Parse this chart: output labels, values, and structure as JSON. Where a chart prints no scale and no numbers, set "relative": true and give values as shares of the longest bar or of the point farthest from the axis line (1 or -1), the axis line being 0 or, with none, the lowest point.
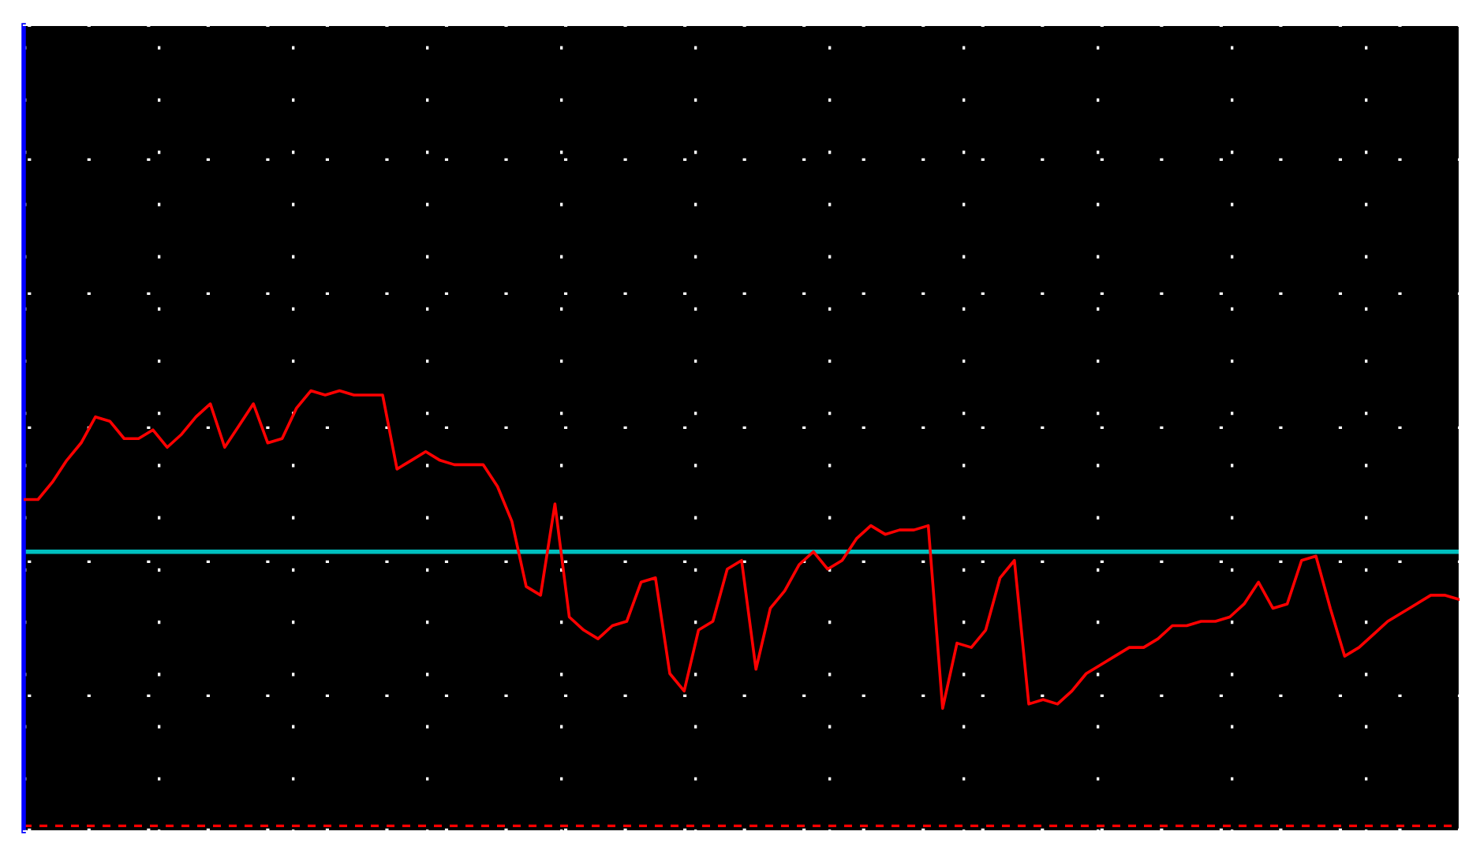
{
  "chart_data": {
    "type": "line",
    "relative": true,
    "grid": true,
    "line_style": "solid",
    "marker": "none",
    "categories": [
      null,
      null,
      null,
      null,
      null,
      null,
      null,
      null,
      null,
      null,
      null,
      null,
      null,
      null,
      null,
      null,
      null,
      null,
      null,
      null,
      null,
      null,
      null,
      null,
      null,
      null,
      null,
      null,
      null,
      null,
      null,
      null,
      null,
      null,
      null,
      null,
      null,
      null,
      null,
      null,
      null,
      null,
      null,
      null,
      null,
      null,
      null,
      null,
      null,
      null,
      null,
      null,
      null,
      null,
      null,
      null,
      null,
      null,
      null,
      null,
      null,
      null,
      null,
      null,
      null,
      null,
      null,
      null,
      null,
      null,
      null,
      null,
      null,
      null,
      null,
      null,
      null,
      null,
      null,
      null,
      null,
      null,
      null,
      null,
      null,
      null,
      null,
      null,
      null,
      null,
      null,
      null,
      null,
      null,
      null,
      null,
      null,
      null,
      null,
      null,
      null
    ],
    "series": [
      {
        "color": "#ff0000",
        "values": [
          0.75,
          0.75,
          0.79,
          0.84,
          0.88,
          0.94,
          0.93,
          0.89,
          0.89,
          0.91,
          0.87,
          0.9,
          0.94,
          0.97,
          0.87,
          0.92,
          0.97,
          0.88,
          0.89,
          0.96,
          1.0,
          0.99,
          1.0,
          0.99,
          0.99,
          0.99,
          0.82,
          0.84,
          0.86,
          0.84,
          0.83,
          0.83,
          0.83,
          0.78,
          0.7,
          0.55,
          0.53,
          0.74,
          0.48,
          0.45,
          0.43,
          0.46,
          0.47,
          0.56,
          0.57,
          0.35,
          0.31,
          0.45,
          0.47,
          0.59,
          0.61,
          0.36,
          0.5,
          0.54,
          0.6,
          0.63,
          0.59,
          0.61,
          0.66,
          0.69,
          0.67,
          0.68,
          0.68,
          0.69,
          0.27,
          0.42,
          0.41,
          0.45,
          0.57,
          0.61,
          0.28,
          0.29,
          0.28,
          0.31,
          0.35,
          0.37,
          0.39,
          0.41,
          0.41,
          0.43,
          0.46,
          0.46,
          0.47,
          0.47,
          0.48,
          0.51,
          0.56,
          0.5,
          0.51,
          0.61,
          0.62,
          0.5,
          0.39,
          0.41,
          0.44,
          0.47,
          0.49,
          0.51,
          0.53,
          0.53,
          0.52
        ]
      }
    ],
    "ref_lines": [
      {
        "axis": "y",
        "value": 0.63,
        "color": "#00c0c0",
        "line_style": "solid"
      }
    ]
  }
}
